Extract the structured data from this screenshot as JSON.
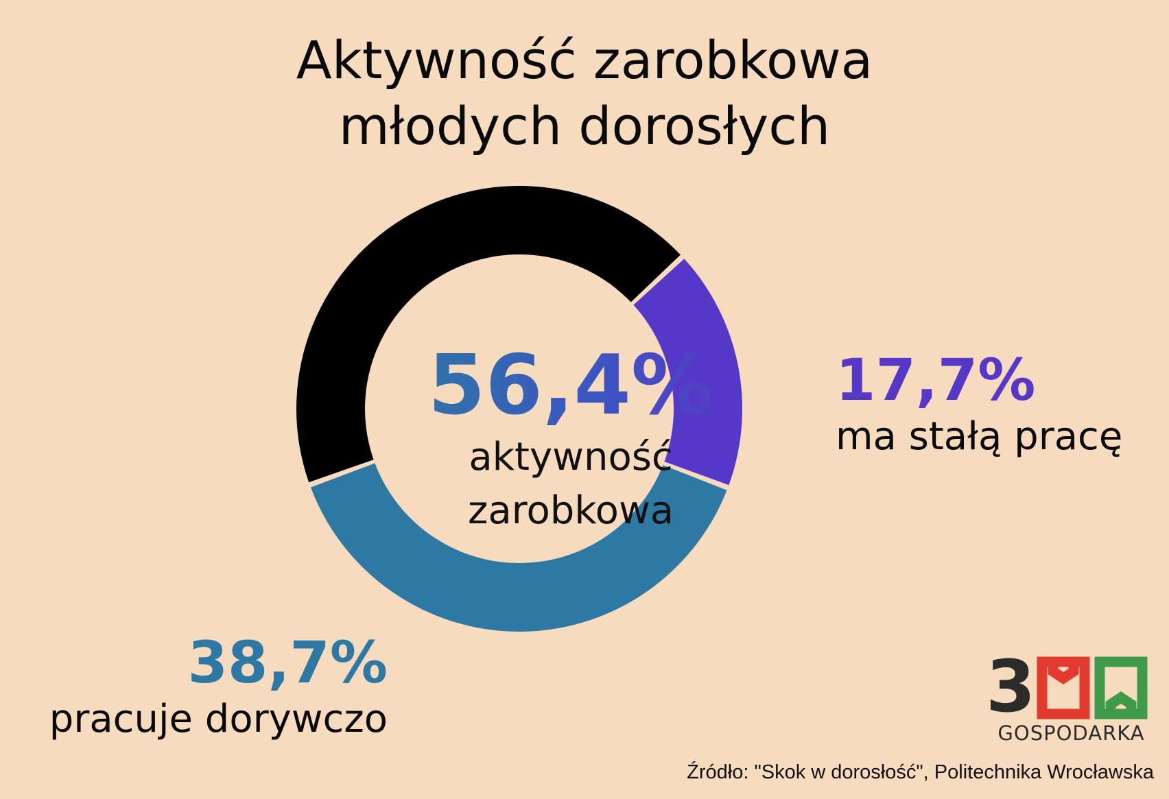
{
  "colors": {
    "background": "#f7dbbf",
    "other": "#000000",
    "permanent": "#5638c8",
    "casual": "#2e79a3",
    "logo_red": "#e23a2e",
    "logo_green": "#3f9b4a",
    "logo_dark": "#2b2b2b"
  },
  "title_lines": [
    "Aktywność zarobkowa",
    "młodych dorosłych"
  ],
  "chart_data": {
    "type": "pie",
    "variant": "donut",
    "title": "Aktywność zarobkowa młodych dorosłych",
    "center": {
      "value": "56,4%",
      "label_lines": [
        "aktywność",
        "zarobkowa"
      ]
    },
    "slices": [
      {
        "name": "ma stałą pracę",
        "value": 17.7,
        "display": "17,7%",
        "color": "#5638c8"
      },
      {
        "name": "pracuje dorywczo",
        "value": 38.7,
        "display": "38,7%",
        "color": "#2e79a3"
      },
      {
        "name": "",
        "value": 43.6,
        "display": "",
        "color": "#000000"
      }
    ],
    "start_angle_deg": 47
  },
  "annotations": {
    "right": {
      "value": "17,7%",
      "label": "ma stałą pracę"
    },
    "left": {
      "value": "38,7%",
      "label": "pracuje dorywczo"
    }
  },
  "logo": {
    "digits": "300",
    "text": "GOSPODARKA"
  },
  "source": "Źródło: \"Skok w dorosłość\", Politechnika Wrocławska"
}
